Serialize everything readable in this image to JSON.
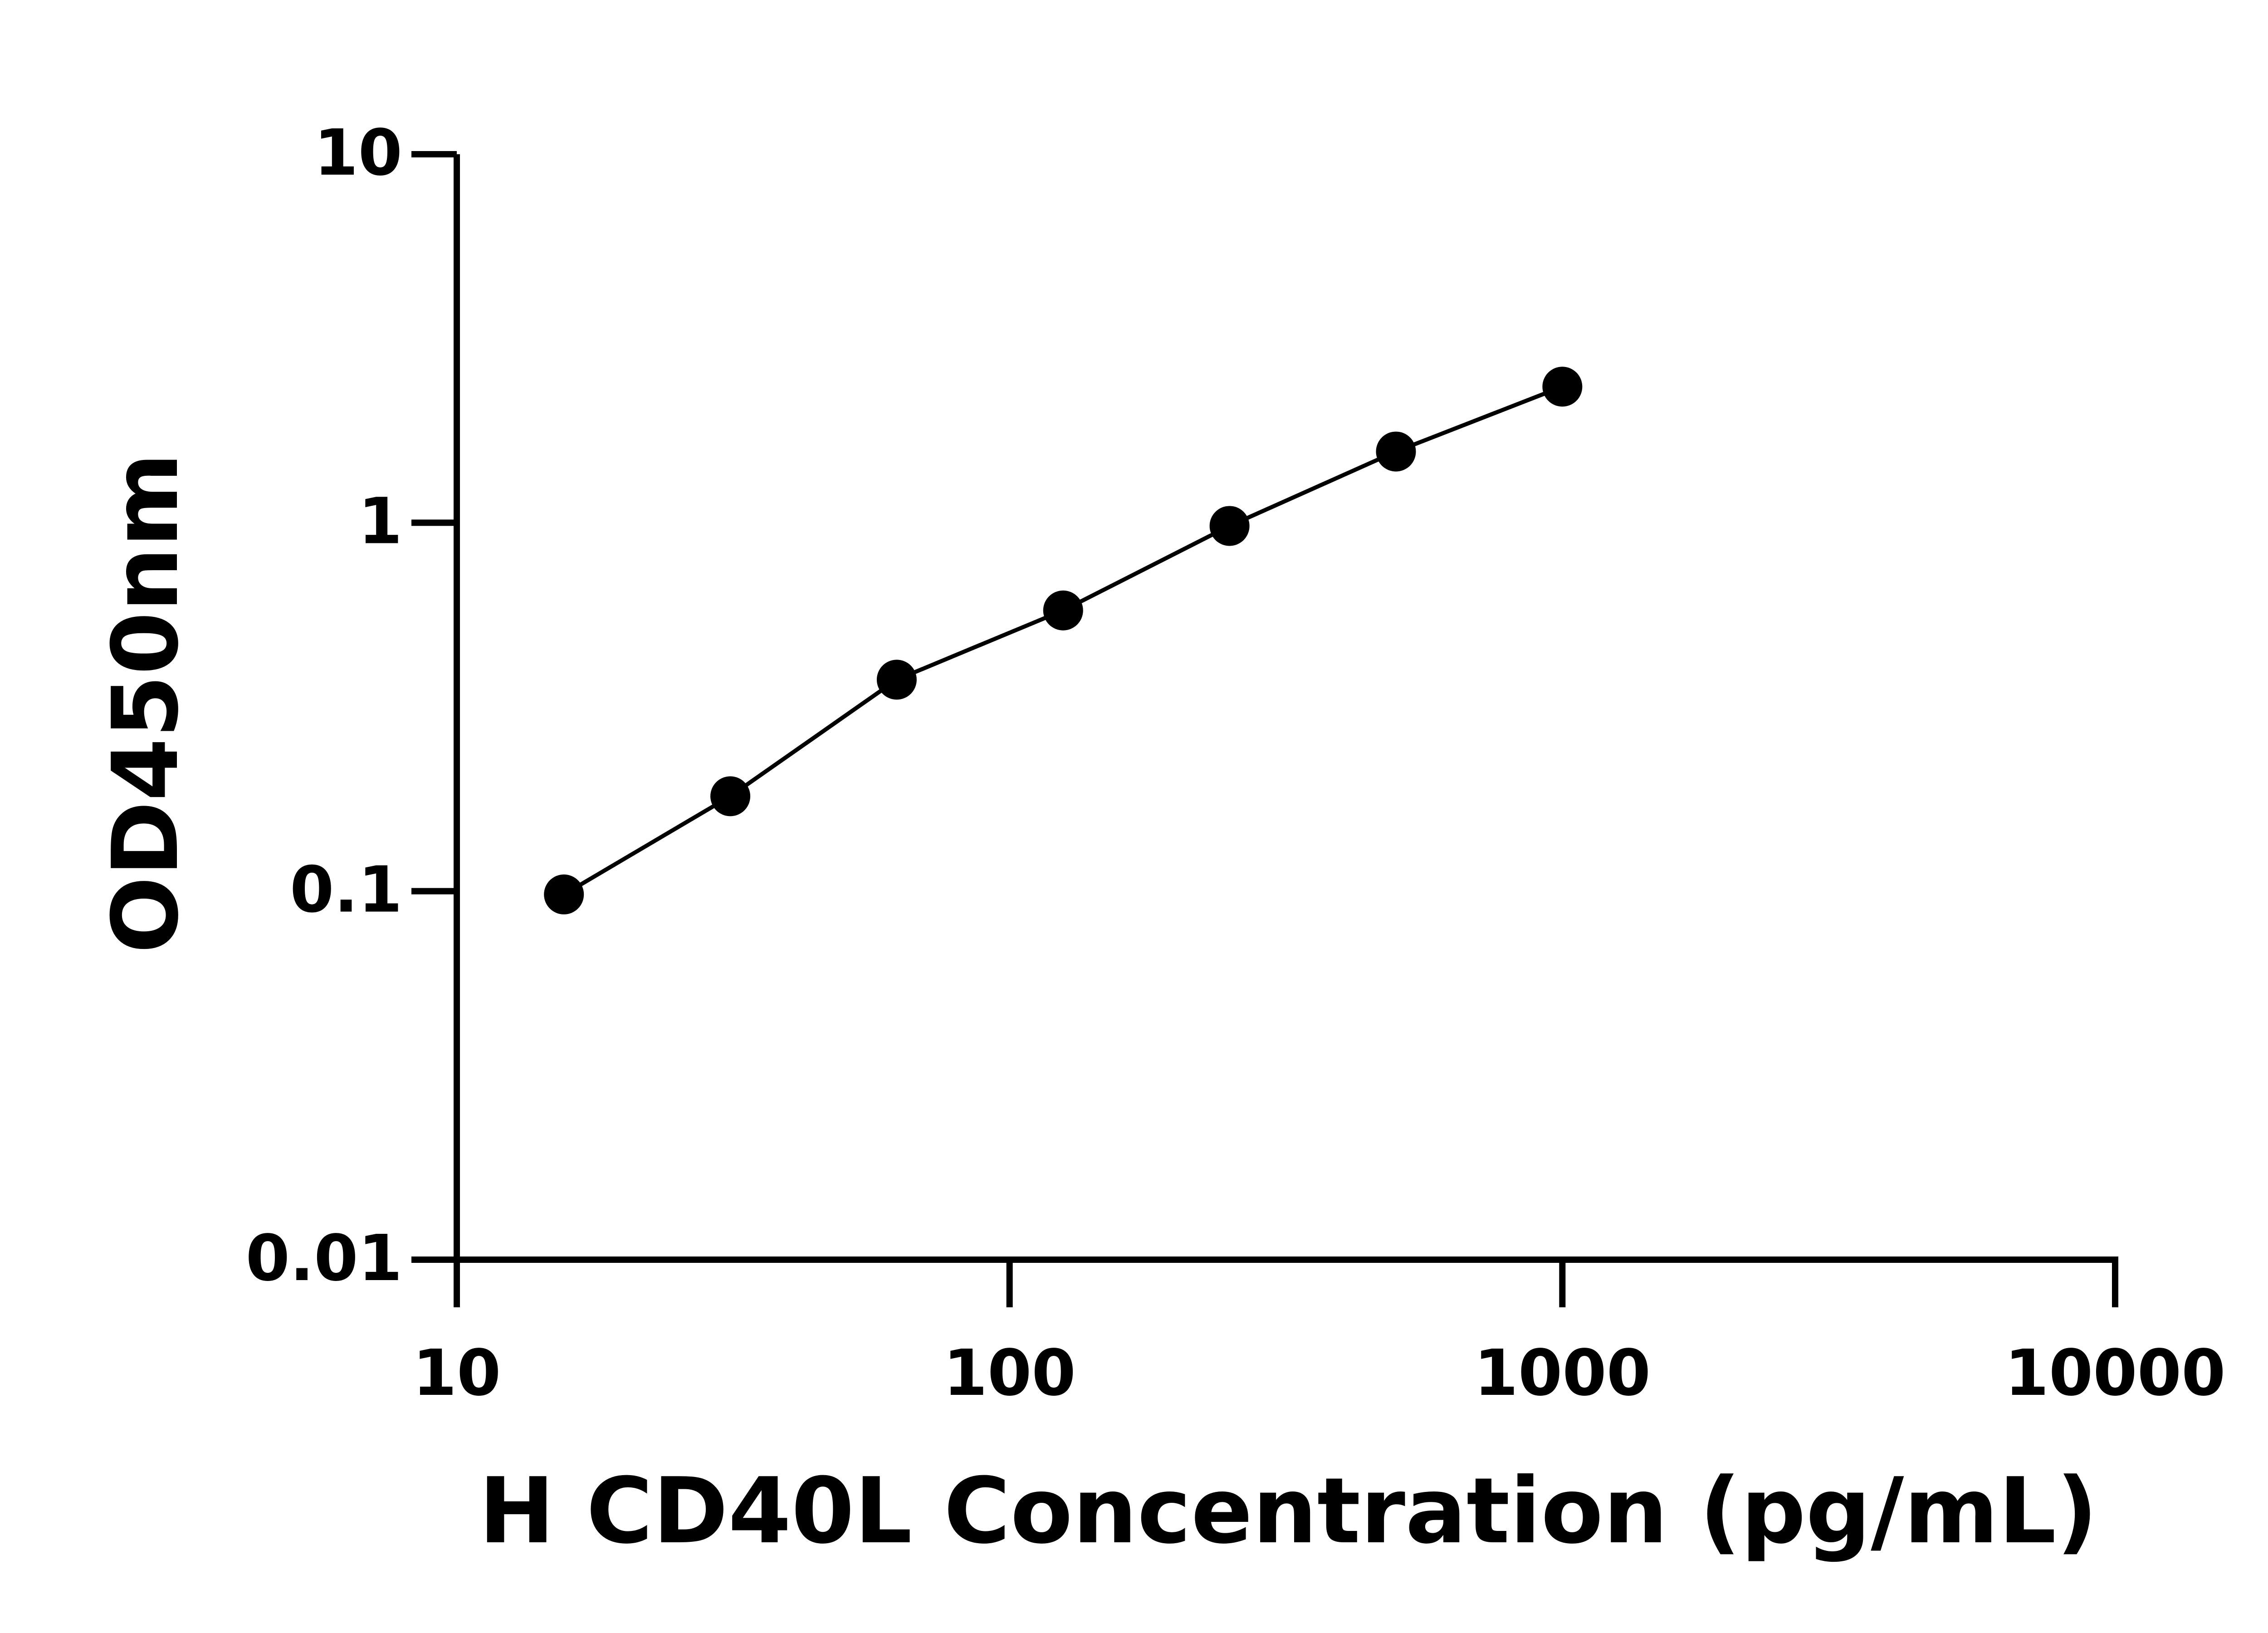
{
  "chart_data": {
    "type": "scatter",
    "title": "",
    "xlabel": "H CD40L Concentration (pg/mL)",
    "ylabel": "OD450nm",
    "xscale": "log",
    "yscale": "log",
    "xlim": [
      10,
      10000
    ],
    "ylim": [
      0.01,
      10
    ],
    "xticks": [
      "10",
      "100",
      "1000",
      "10000"
    ],
    "yticks": [
      "0.01",
      "0.1",
      "1",
      "10"
    ],
    "grid": false,
    "series": [
      {
        "x": [
          15.625,
          31.25,
          62.5,
          125,
          250,
          500,
          1000
        ],
        "y": [
          0.098,
          0.181,
          0.375,
          0.578,
          0.98,
          1.56,
          2.34
        ],
        "marker": "circle",
        "line": "fitted curve",
        "color": "#000000"
      }
    ]
  }
}
